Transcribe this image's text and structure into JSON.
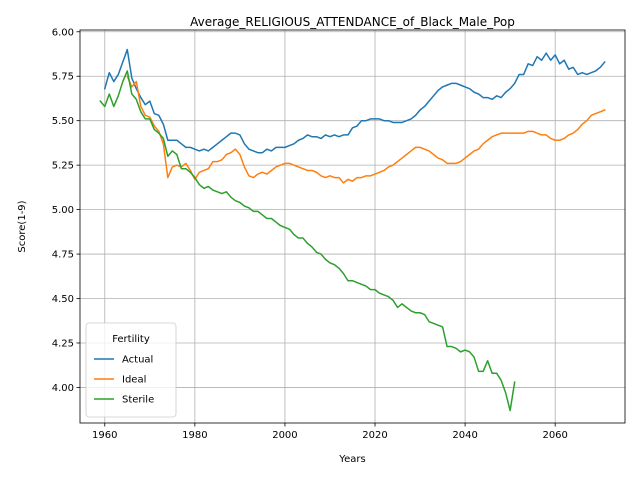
{
  "chart_data": {
    "type": "line",
    "title": "Average_RELIGIOUS_ATTENDANCE_of_Black_Male_Pop",
    "xlabel": "Years",
    "ylabel": "Score(1-9)",
    "xlim": [
      1954.5,
      2075.5
    ],
    "ylim": [
      3.8,
      6.01
    ],
    "xticks": [
      1960,
      1980,
      2000,
      2020,
      2040,
      2060
    ],
    "xtick_labels": [
      "1960",
      "1980",
      "2000",
      "2020",
      "2040",
      "2060"
    ],
    "yticks": [
      4.0,
      4.25,
      4.5,
      4.75,
      5.0,
      5.25,
      5.5,
      5.75,
      6.0
    ],
    "ytick_labels": [
      "4.00",
      "4.25",
      "4.50",
      "4.75",
      "5.00",
      "5.25",
      "5.50",
      "5.75",
      "6.00"
    ],
    "grid": true,
    "legend": {
      "title": "Fertility",
      "placement": "lower-left"
    },
    "series": [
      {
        "name": "Actual",
        "color": "#1f77b4",
        "points": [
          [
            1960,
            5.68
          ],
          [
            1961,
            5.77
          ],
          [
            1962,
            5.72
          ],
          [
            1963,
            5.76
          ],
          [
            1964,
            5.83
          ],
          [
            1965,
            5.9
          ],
          [
            1966,
            5.74
          ],
          [
            1967,
            5.68
          ],
          [
            1968,
            5.63
          ],
          [
            1969,
            5.59
          ],
          [
            1970,
            5.61
          ],
          [
            1971,
            5.54
          ],
          [
            1972,
            5.53
          ],
          [
            1973,
            5.48
          ],
          [
            1974,
            5.39
          ],
          [
            1975,
            5.39
          ],
          [
            1976,
            5.39
          ],
          [
            1977,
            5.37
          ],
          [
            1978,
            5.35
          ],
          [
            1979,
            5.35
          ],
          [
            1980,
            5.34
          ],
          [
            1981,
            5.33
          ],
          [
            1982,
            5.34
          ],
          [
            1983,
            5.33
          ],
          [
            1984,
            5.35
          ],
          [
            1985,
            5.37
          ],
          [
            1986,
            5.39
          ],
          [
            1987,
            5.41
          ],
          [
            1988,
            5.43
          ],
          [
            1989,
            5.43
          ],
          [
            1990,
            5.42
          ],
          [
            1991,
            5.37
          ],
          [
            1992,
            5.34
          ],
          [
            1993,
            5.33
          ],
          [
            1994,
            5.32
          ],
          [
            1995,
            5.32
          ],
          [
            1996,
            5.34
          ],
          [
            1997,
            5.33
          ],
          [
            1998,
            5.35
          ],
          [
            1999,
            5.35
          ],
          [
            2000,
            5.35
          ],
          [
            2001,
            5.36
          ],
          [
            2002,
            5.37
          ],
          [
            2003,
            5.39
          ],
          [
            2004,
            5.4
          ],
          [
            2005,
            5.42
          ],
          [
            2006,
            5.41
          ],
          [
            2007,
            5.41
          ],
          [
            2008,
            5.4
          ],
          [
            2009,
            5.42
          ],
          [
            2010,
            5.41
          ],
          [
            2011,
            5.42
          ],
          [
            2012,
            5.41
          ],
          [
            2013,
            5.42
          ],
          [
            2014,
            5.42
          ],
          [
            2015,
            5.46
          ],
          [
            2016,
            5.47
          ],
          [
            2017,
            5.5
          ],
          [
            2018,
            5.5
          ],
          [
            2019,
            5.51
          ],
          [
            2020,
            5.51
          ],
          [
            2021,
            5.51
          ],
          [
            2022,
            5.5
          ],
          [
            2023,
            5.5
          ],
          [
            2024,
            5.49
          ],
          [
            2025,
            5.49
          ],
          [
            2026,
            5.49
          ],
          [
            2027,
            5.5
          ],
          [
            2028,
            5.51
          ],
          [
            2029,
            5.53
          ],
          [
            2030,
            5.56
          ],
          [
            2031,
            5.58
          ],
          [
            2032,
            5.61
          ],
          [
            2033,
            5.64
          ],
          [
            2034,
            5.67
          ],
          [
            2035,
            5.69
          ],
          [
            2036,
            5.7
          ],
          [
            2037,
            5.71
          ],
          [
            2038,
            5.71
          ],
          [
            2039,
            5.7
          ],
          [
            2040,
            5.69
          ],
          [
            2041,
            5.68
          ],
          [
            2042,
            5.66
          ],
          [
            2043,
            5.65
          ],
          [
            2044,
            5.63
          ],
          [
            2045,
            5.63
          ],
          [
            2046,
            5.62
          ],
          [
            2047,
            5.64
          ],
          [
            2048,
            5.63
          ],
          [
            2049,
            5.66
          ],
          [
            2050,
            5.68
          ],
          [
            2051,
            5.71
          ],
          [
            2052,
            5.76
          ],
          [
            2053,
            5.76
          ],
          [
            2054,
            5.82
          ],
          [
            2055,
            5.81
          ],
          [
            2056,
            5.86
          ],
          [
            2057,
            5.84
          ],
          [
            2058,
            5.88
          ],
          [
            2059,
            5.84
          ],
          [
            2060,
            5.87
          ],
          [
            2061,
            5.82
          ],
          [
            2062,
            5.84
          ],
          [
            2063,
            5.79
          ],
          [
            2064,
            5.8
          ],
          [
            2065,
            5.76
          ],
          [
            2066,
            5.77
          ],
          [
            2067,
            5.76
          ],
          [
            2068,
            5.77
          ],
          [
            2069,
            5.78
          ],
          [
            2070,
            5.8
          ],
          [
            2071,
            5.83
          ]
        ]
      },
      {
        "name": "Ideal",
        "color": "#ff7f0e",
        "points": [
          [
            1965,
            5.75
          ],
          [
            1966,
            5.69
          ],
          [
            1967,
            5.72
          ],
          [
            1968,
            5.58
          ],
          [
            1969,
            5.53
          ],
          [
            1970,
            5.52
          ],
          [
            1971,
            5.47
          ],
          [
            1972,
            5.44
          ],
          [
            1973,
            5.37
          ],
          [
            1974,
            5.18
          ],
          [
            1975,
            5.24
          ],
          [
            1976,
            5.25
          ],
          [
            1977,
            5.24
          ],
          [
            1978,
            5.26
          ],
          [
            1979,
            5.22
          ],
          [
            1980,
            5.17
          ],
          [
            1981,
            5.21
          ],
          [
            1982,
            5.22
          ],
          [
            1983,
            5.23
          ],
          [
            1984,
            5.27
          ],
          [
            1985,
            5.27
          ],
          [
            1986,
            5.28
          ],
          [
            1987,
            5.31
          ],
          [
            1988,
            5.32
          ],
          [
            1989,
            5.34
          ],
          [
            1990,
            5.31
          ],
          [
            1991,
            5.24
          ],
          [
            1992,
            5.19
          ],
          [
            1993,
            5.18
          ],
          [
            1994,
            5.2
          ],
          [
            1995,
            5.21
          ],
          [
            1996,
            5.2
          ],
          [
            1997,
            5.22
          ],
          [
            1998,
            5.24
          ],
          [
            1999,
            5.25
          ],
          [
            2000,
            5.26
          ],
          [
            2001,
            5.26
          ],
          [
            2002,
            5.25
          ],
          [
            2003,
            5.24
          ],
          [
            2004,
            5.23
          ],
          [
            2005,
            5.22
          ],
          [
            2006,
            5.22
          ],
          [
            2007,
            5.21
          ],
          [
            2008,
            5.19
          ],
          [
            2009,
            5.18
          ],
          [
            2010,
            5.19
          ],
          [
            2011,
            5.18
          ],
          [
            2012,
            5.18
          ],
          [
            2013,
            5.15
          ],
          [
            2014,
            5.17
          ],
          [
            2015,
            5.16
          ],
          [
            2016,
            5.18
          ],
          [
            2017,
            5.18
          ],
          [
            2018,
            5.19
          ],
          [
            2019,
            5.19
          ],
          [
            2020,
            5.2
          ],
          [
            2021,
            5.21
          ],
          [
            2022,
            5.22
          ],
          [
            2023,
            5.24
          ],
          [
            2024,
            5.25
          ],
          [
            2025,
            5.27
          ],
          [
            2026,
            5.29
          ],
          [
            2027,
            5.31
          ],
          [
            2028,
            5.33
          ],
          [
            2029,
            5.35
          ],
          [
            2030,
            5.35
          ],
          [
            2031,
            5.34
          ],
          [
            2032,
            5.33
          ],
          [
            2033,
            5.31
          ],
          [
            2034,
            5.29
          ],
          [
            2035,
            5.28
          ],
          [
            2036,
            5.26
          ],
          [
            2037,
            5.26
          ],
          [
            2038,
            5.26
          ],
          [
            2039,
            5.27
          ],
          [
            2040,
            5.29
          ],
          [
            2041,
            5.31
          ],
          [
            2042,
            5.33
          ],
          [
            2043,
            5.34
          ],
          [
            2044,
            5.37
          ],
          [
            2045,
            5.39
          ],
          [
            2046,
            5.41
          ],
          [
            2047,
            5.42
          ],
          [
            2048,
            5.43
          ],
          [
            2049,
            5.43
          ],
          [
            2050,
            5.43
          ],
          [
            2051,
            5.43
          ],
          [
            2052,
            5.43
          ],
          [
            2053,
            5.43
          ],
          [
            2054,
            5.44
          ],
          [
            2055,
            5.44
          ],
          [
            2056,
            5.43
          ],
          [
            2057,
            5.42
          ],
          [
            2058,
            5.42
          ],
          [
            2059,
            5.4
          ],
          [
            2060,
            5.39
          ],
          [
            2061,
            5.39
          ],
          [
            2062,
            5.4
          ],
          [
            2063,
            5.42
          ],
          [
            2064,
            5.43
          ],
          [
            2065,
            5.45
          ],
          [
            2066,
            5.48
          ],
          [
            2067,
            5.5
          ],
          [
            2068,
            5.53
          ],
          [
            2069,
            5.54
          ],
          [
            2070,
            5.55
          ],
          [
            2071,
            5.56
          ]
        ]
      },
      {
        "name": "Sterile",
        "color": "#2ca02c",
        "points": [
          [
            1959,
            5.61
          ],
          [
            1960,
            5.58
          ],
          [
            1961,
            5.65
          ],
          [
            1962,
            5.58
          ],
          [
            1963,
            5.64
          ],
          [
            1964,
            5.72
          ],
          [
            1965,
            5.78
          ],
          [
            1966,
            5.65
          ],
          [
            1967,
            5.62
          ],
          [
            1968,
            5.55
          ],
          [
            1969,
            5.51
          ],
          [
            1970,
            5.51
          ],
          [
            1971,
            5.45
          ],
          [
            1972,
            5.43
          ],
          [
            1973,
            5.4
          ],
          [
            1974,
            5.3
          ],
          [
            1975,
            5.33
          ],
          [
            1976,
            5.31
          ],
          [
            1977,
            5.23
          ],
          [
            1978,
            5.23
          ],
          [
            1979,
            5.21
          ],
          [
            1980,
            5.18
          ],
          [
            1981,
            5.14
          ],
          [
            1982,
            5.12
          ],
          [
            1983,
            5.13
          ],
          [
            1984,
            5.11
          ],
          [
            1985,
            5.1
          ],
          [
            1986,
            5.09
          ],
          [
            1987,
            5.1
          ],
          [
            1988,
            5.07
          ],
          [
            1989,
            5.05
          ],
          [
            1990,
            5.04
          ],
          [
            1991,
            5.02
          ],
          [
            1992,
            5.01
          ],
          [
            1993,
            4.99
          ],
          [
            1994,
            4.99
          ],
          [
            1995,
            4.97
          ],
          [
            1996,
            4.95
          ],
          [
            1997,
            4.95
          ],
          [
            1998,
            4.93
          ],
          [
            1999,
            4.91
          ],
          [
            2000,
            4.9
          ],
          [
            2001,
            4.89
          ],
          [
            2002,
            4.86
          ],
          [
            2003,
            4.84
          ],
          [
            2004,
            4.84
          ],
          [
            2005,
            4.81
          ],
          [
            2006,
            4.79
          ],
          [
            2007,
            4.76
          ],
          [
            2008,
            4.75
          ],
          [
            2009,
            4.72
          ],
          [
            2010,
            4.7
          ],
          [
            2011,
            4.69
          ],
          [
            2012,
            4.67
          ],
          [
            2013,
            4.64
          ],
          [
            2014,
            4.6
          ],
          [
            2015,
            4.6
          ],
          [
            2016,
            4.59
          ],
          [
            2017,
            4.58
          ],
          [
            2018,
            4.57
          ],
          [
            2019,
            4.55
          ],
          [
            2020,
            4.55
          ],
          [
            2021,
            4.53
          ],
          [
            2022,
            4.52
          ],
          [
            2023,
            4.51
          ],
          [
            2024,
            4.49
          ],
          [
            2025,
            4.45
          ],
          [
            2026,
            4.47
          ],
          [
            2027,
            4.45
          ],
          [
            2028,
            4.43
          ],
          [
            2029,
            4.42
          ],
          [
            2030,
            4.42
          ],
          [
            2031,
            4.41
          ],
          [
            2032,
            4.37
          ],
          [
            2033,
            4.36
          ],
          [
            2034,
            4.35
          ],
          [
            2035,
            4.34
          ],
          [
            2036,
            4.23
          ],
          [
            2037,
            4.23
          ],
          [
            2038,
            4.22
          ],
          [
            2039,
            4.2
          ],
          [
            2040,
            4.21
          ],
          [
            2041,
            4.2
          ],
          [
            2042,
            4.17
          ],
          [
            2043,
            4.09
          ],
          [
            2044,
            4.09
          ],
          [
            2045,
            4.15
          ],
          [
            2046,
            4.08
          ],
          [
            2047,
            4.08
          ],
          [
            2048,
            4.04
          ],
          [
            2049,
            3.97
          ],
          [
            2050,
            3.87
          ],
          [
            2051,
            4.03
          ]
        ]
      }
    ]
  }
}
